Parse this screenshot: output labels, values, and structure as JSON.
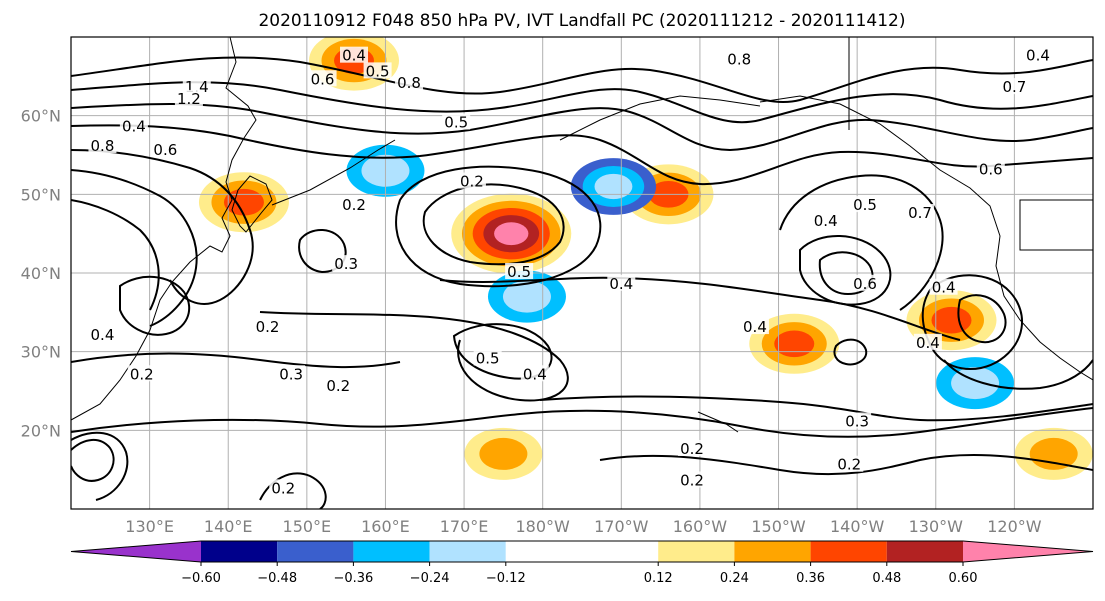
{
  "chart_data": {
    "type": "heatmap",
    "title": "2020110912 F048 850 hPa PV, IVT Landfall PC (2020111212 - 2020111412)",
    "map": {
      "lon_range": [
        120,
        250
      ],
      "lat_range": [
        10,
        70
      ],
      "lon_ticks": [
        130,
        140,
        150,
        160,
        170,
        180,
        190,
        200,
        210,
        220,
        230,
        240
      ],
      "lon_tick_labels": [
        "130°E",
        "140°E",
        "150°E",
        "160°E",
        "170°E",
        "180°W",
        "170°W",
        "160°W",
        "150°W",
        "140°W",
        "130°W",
        "120°W"
      ],
      "lat_ticks": [
        20,
        30,
        40,
        50,
        60
      ],
      "lat_tick_labels": [
        "20°N",
        "30°N",
        "40°N",
        "50°N",
        "60°N"
      ],
      "grid": true
    },
    "colorbar": {
      "boundaries": [
        -0.72,
        -0.6,
        -0.48,
        -0.36,
        -0.24,
        -0.12,
        0.12,
        0.24,
        0.36,
        0.48,
        0.6,
        0.72
      ],
      "tick_values": [
        -0.6,
        -0.48,
        -0.36,
        -0.24,
        -0.12,
        0.12,
        0.24,
        0.36,
        0.48,
        0.6
      ],
      "tick_labels": [
        "−0.60",
        "−0.48",
        "−0.36",
        "−0.24",
        "−0.12",
        "0.12",
        "0.24",
        "0.36",
        "0.48",
        "0.60"
      ],
      "colors": [
        "#9932cc",
        "#00008b",
        "#3a5fcd",
        "#00bfff",
        "#b0e2ff",
        "#ffffff",
        "#ffec8b",
        "#ffa500",
        "#ff4500",
        "#b22222",
        "#ff82ab"
      ],
      "extend": "both"
    },
    "shaded_anomalies": [
      {
        "lon": 176,
        "lat": 45,
        "value": 0.65
      },
      {
        "lon": 212,
        "lat": 31,
        "value": 0.4
      },
      {
        "lon": 142,
        "lat": 49,
        "value": 0.4
      },
      {
        "lon": 196,
        "lat": 50,
        "value": 0.4
      },
      {
        "lon": 189,
        "lat": 51,
        "value": -0.36
      },
      {
        "lon": 160,
        "lat": 53,
        "value": -0.3
      },
      {
        "lon": 178,
        "lat": 37,
        "value": -0.3
      },
      {
        "lon": 235,
        "lat": 26,
        "value": -0.3
      },
      {
        "lon": 232,
        "lat": 34,
        "value": 0.4
      },
      {
        "lon": 245,
        "lat": 17,
        "value": 0.3
      },
      {
        "lon": 175,
        "lat": 17,
        "value": 0.3
      },
      {
        "lon": 156,
        "lat": 67,
        "value": 0.4
      }
    ],
    "contour_labels": [
      {
        "text": "0.4",
        "lon": 156,
        "lat": 67.5
      },
      {
        "text": "0.5",
        "lon": 159,
        "lat": 65.5
      },
      {
        "text": "0.6",
        "lon": 152,
        "lat": 64.5
      },
      {
        "text": "0.8",
        "lon": 163,
        "lat": 64
      },
      {
        "text": "1.4",
        "lon": 136,
        "lat": 63.5
      },
      {
        "text": "1.2",
        "lon": 135,
        "lat": 62
      },
      {
        "text": "0.4",
        "lon": 128,
        "lat": 58.5
      },
      {
        "text": "0.8",
        "lon": 124,
        "lat": 56
      },
      {
        "text": "0.6",
        "lon": 132,
        "lat": 55.5
      },
      {
        "text": "0.5",
        "lon": 169,
        "lat": 59
      },
      {
        "text": "0.2",
        "lon": 171,
        "lat": 51.5
      },
      {
        "text": "0.2",
        "lon": 156,
        "lat": 48.5
      },
      {
        "text": "0.8",
        "lon": 205,
        "lat": 67
      },
      {
        "text": "0.4",
        "lon": 243,
        "lat": 67.5
      },
      {
        "text": "0.7",
        "lon": 240,
        "lat": 63.5
      },
      {
        "text": "0.6",
        "lon": 237,
        "lat": 53
      },
      {
        "text": "0.7",
        "lon": 228,
        "lat": 47.5
      },
      {
        "text": "0.5",
        "lon": 221,
        "lat": 48.5
      },
      {
        "text": "0.4",
        "lon": 216,
        "lat": 46.5
      },
      {
        "text": "0.6",
        "lon": 221,
        "lat": 38.5
      },
      {
        "text": "0.4",
        "lon": 231,
        "lat": 38
      },
      {
        "text": "0.5",
        "lon": 177,
        "lat": 40
      },
      {
        "text": "0.4",
        "lon": 190,
        "lat": 38.5
      },
      {
        "text": "0.4",
        "lon": 207,
        "lat": 33
      },
      {
        "text": "0.2",
        "lon": 145,
        "lat": 33
      },
      {
        "text": "0.3",
        "lon": 148,
        "lat": 27
      },
      {
        "text": "0.2",
        "lon": 154,
        "lat": 25.5
      },
      {
        "text": "0.5",
        "lon": 173,
        "lat": 29
      },
      {
        "text": "0.4",
        "lon": 179,
        "lat": 27
      },
      {
        "text": "0.2",
        "lon": 129,
        "lat": 27
      },
      {
        "text": "0.4",
        "lon": 124,
        "lat": 32
      },
      {
        "text": "0.3",
        "lon": 220,
        "lat": 21
      },
      {
        "text": "0.2",
        "lon": 199,
        "lat": 17.5
      },
      {
        "text": "0.2",
        "lon": 219,
        "lat": 15.5
      },
      {
        "text": "0.2",
        "lon": 199,
        "lat": 13.5
      },
      {
        "text": "0.2",
        "lon": 147,
        "lat": 12.5
      },
      {
        "text": "0.4",
        "lon": 229,
        "lat": 31
      },
      {
        "text": "0.3",
        "lon": 155,
        "lat": 41
      }
    ]
  }
}
